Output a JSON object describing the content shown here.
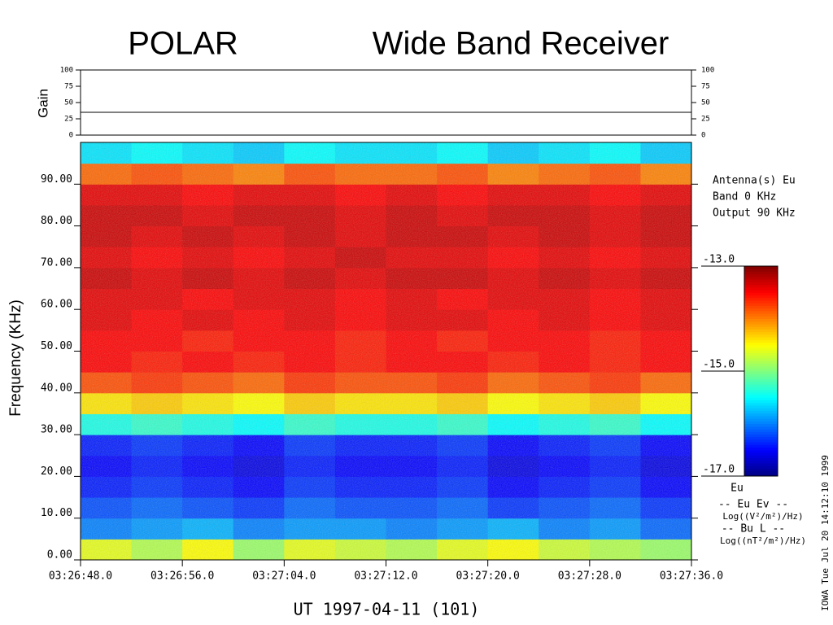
{
  "chart_data": {
    "type": "spectrogram",
    "title": "POLAR",
    "title2": "Wide Band Receiver",
    "xlabel": "UT 1997-04-11  (101)",
    "ylabel": "Frequency (KHz)",
    "xlim": [
      12408,
      12456
    ],
    "xticks": [
      {
        "value": 12408,
        "label": "03:26:48.0"
      },
      {
        "value": 12416,
        "label": "03:26:56.0"
      },
      {
        "value": 12424,
        "label": "03:27:04.0"
      },
      {
        "value": 12432,
        "label": "03:27:12.0"
      },
      {
        "value": 12440,
        "label": "03:27:20.0"
      },
      {
        "value": 12448,
        "label": "03:27:28.0"
      },
      {
        "value": 12456,
        "label": "03:27:36.0"
      }
    ],
    "ylim": [
      0,
      100
    ],
    "yticks": [
      {
        "value": 0,
        "label": "0.00"
      },
      {
        "value": 10,
        "label": "10.00"
      },
      {
        "value": 20,
        "label": "20.00"
      },
      {
        "value": 30,
        "label": "30.00"
      },
      {
        "value": 40,
        "label": "40.00"
      },
      {
        "value": 50,
        "label": "50.00"
      },
      {
        "value": 60,
        "label": "60.00"
      },
      {
        "value": 70,
        "label": "70.00"
      },
      {
        "value": 80,
        "label": "80.00"
      },
      {
        "value": 90,
        "label": "90.00"
      }
    ],
    "time_bins": [
      12408,
      12412,
      12416,
      12420,
      12424,
      12428,
      12432,
      12436,
      12440,
      12444,
      12448,
      12452,
      12456
    ],
    "freq_bins": [
      0,
      5,
      10,
      15,
      20,
      25,
      30,
      35,
      40,
      45,
      50,
      55,
      60,
      65,
      70,
      75,
      80,
      85,
      90,
      95,
      100
    ],
    "z": [
      [
        -14.6,
        -14.8,
        -14.5,
        -14.9,
        -14.6,
        -14.7,
        -14.8,
        -14.6,
        -14.5,
        -14.7,
        -14.8,
        -14.9
      ],
      [
        -16.0,
        -15.9,
        -15.8,
        -16.0,
        -15.9,
        -15.9,
        -16.0,
        -15.9,
        -15.8,
        -16.0,
        -15.9,
        -16.1
      ],
      [
        -16.2,
        -16.1,
        -16.2,
        -16.3,
        -16.1,
        -16.2,
        -16.2,
        -16.1,
        -16.3,
        -16.2,
        -16.1,
        -16.3
      ],
      [
        -16.4,
        -16.3,
        -16.4,
        -16.5,
        -16.3,
        -16.4,
        -16.4,
        -16.3,
        -16.5,
        -16.4,
        -16.3,
        -16.5
      ],
      [
        -16.5,
        -16.4,
        -16.5,
        -16.6,
        -16.4,
        -16.5,
        -16.5,
        -16.4,
        -16.6,
        -16.5,
        -16.4,
        -16.6
      ],
      [
        -16.4,
        -16.3,
        -16.4,
        -16.5,
        -16.3,
        -16.4,
        -16.4,
        -16.3,
        -16.5,
        -16.4,
        -16.3,
        -16.5
      ],
      [
        -15.4,
        -15.3,
        -15.4,
        -15.5,
        -15.3,
        -15.4,
        -15.4,
        -15.3,
        -15.5,
        -15.4,
        -15.3,
        -15.5
      ],
      [
        -14.4,
        -14.3,
        -14.4,
        -14.5,
        -14.3,
        -14.4,
        -14.4,
        -14.3,
        -14.5,
        -14.4,
        -14.3,
        -14.5
      ],
      [
        -13.8,
        -13.7,
        -13.8,
        -13.9,
        -13.7,
        -13.8,
        -13.8,
        -13.7,
        -13.9,
        -13.8,
        -13.7,
        -13.9
      ],
      [
        -13.5,
        -13.6,
        -13.5,
        -13.6,
        -13.5,
        -13.6,
        -13.5,
        -13.5,
        -13.6,
        -13.5,
        -13.6,
        -13.5
      ],
      [
        -13.5,
        -13.5,
        -13.6,
        -13.5,
        -13.5,
        -13.6,
        -13.5,
        -13.6,
        -13.5,
        -13.5,
        -13.6,
        -13.5
      ],
      [
        -13.4,
        -13.5,
        -13.4,
        -13.5,
        -13.4,
        -13.5,
        -13.4,
        -13.4,
        -13.5,
        -13.4,
        -13.5,
        -13.4
      ],
      [
        -13.4,
        -13.4,
        -13.5,
        -13.4,
        -13.4,
        -13.5,
        -13.4,
        -13.5,
        -13.4,
        -13.4,
        -13.5,
        -13.4
      ],
      [
        -13.3,
        -13.4,
        -13.3,
        -13.4,
        -13.3,
        -13.4,
        -13.3,
        -13.3,
        -13.4,
        -13.3,
        -13.4,
        -13.3
      ],
      [
        -13.4,
        -13.5,
        -13.4,
        -13.5,
        -13.4,
        -13.3,
        -13.4,
        -13.4,
        -13.5,
        -13.4,
        -13.5,
        -13.4
      ],
      [
        -13.3,
        -13.4,
        -13.3,
        -13.4,
        -13.3,
        -13.4,
        -13.3,
        -13.3,
        -13.4,
        -13.3,
        -13.4,
        -13.3
      ],
      [
        -13.3,
        -13.3,
        -13.4,
        -13.3,
        -13.3,
        -13.4,
        -13.3,
        -13.4,
        -13.3,
        -13.3,
        -13.4,
        -13.3
      ],
      [
        -13.4,
        -13.4,
        -13.5,
        -13.4,
        -13.4,
        -13.5,
        -13.4,
        -13.5,
        -13.4,
        -13.4,
        -13.5,
        -13.4
      ],
      [
        -13.9,
        -13.8,
        -13.9,
        -14.0,
        -13.8,
        -13.9,
        -13.9,
        -13.8,
        -14.0,
        -13.9,
        -13.8,
        -14.0
      ],
      [
        -15.6,
        -15.5,
        -15.6,
        -15.7,
        -15.5,
        -15.6,
        -15.6,
        -15.5,
        -15.7,
        -15.6,
        -15.5,
        -15.7
      ]
    ],
    "zlim": [
      -17,
      -13
    ],
    "zticks": [
      {
        "value": -13,
        "label": "-13.0"
      },
      {
        "value": -15,
        "label": "-15.0"
      },
      {
        "value": -17,
        "label": "-17.0"
      }
    ],
    "colorbar_label": "Eu",
    "annotations": [
      "Antenna(s) Eu",
      "Band 0 KHz",
      "Output 90 KHz"
    ],
    "legend_notes": [
      "-- Eu Ev --",
      "Log((V²/m²)/Hz)",
      "-- Bu L --",
      "Log((nT²/m²)/Hz)"
    ],
    "footer": "IOWA Tue Jul 20 14:12:10 1999",
    "gain": {
      "label": "Gain",
      "ylim": [
        0,
        100
      ],
      "yticks": [
        0,
        25,
        50,
        75,
        100
      ],
      "x": [
        12408,
        12456
      ],
      "values": [
        35,
        35
      ]
    }
  }
}
